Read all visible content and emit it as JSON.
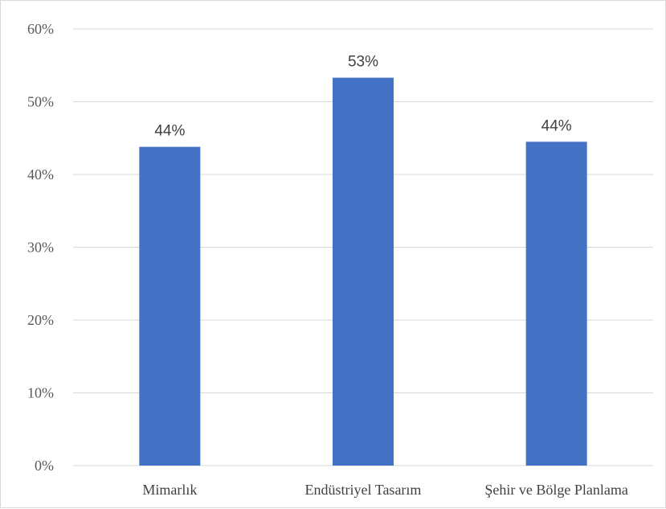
{
  "chart_data": {
    "type": "bar",
    "categories": [
      "Mimarlık",
      "Endüstriyel Tasarım",
      "Şehir ve Bölge Planlama"
    ],
    "values": [
      43.8,
      53.3,
      44.5
    ],
    "data_labels": [
      "44%",
      "53%",
      "44%"
    ],
    "yticks": [
      "0%",
      "10%",
      "20%",
      "30%",
      "40%",
      "50%",
      "60%"
    ],
    "ylim": [
      0,
      60
    ],
    "grid": true,
    "legend": "none",
    "bar_color": "#4472c4",
    "grid_color": "#d9d9d9"
  }
}
